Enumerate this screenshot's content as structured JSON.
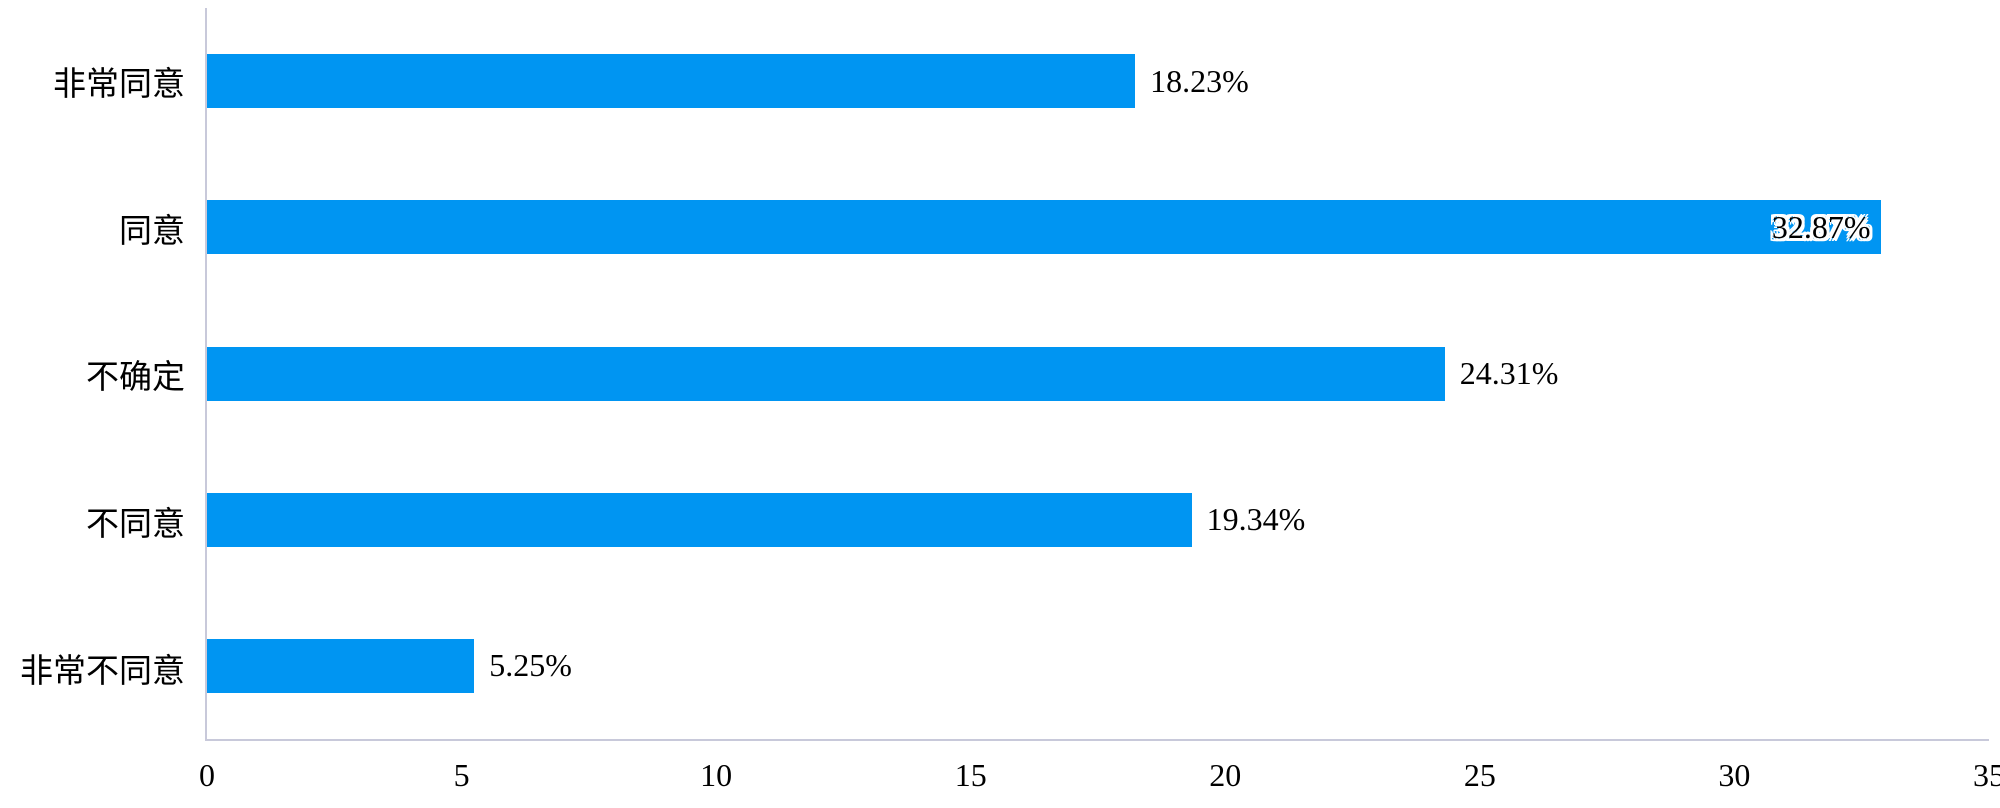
{
  "chart_data": {
    "type": "bar",
    "orientation": "horizontal",
    "title": "",
    "xlabel": "",
    "ylabel": "",
    "categories": [
      "非常同意",
      "同意",
      "不确定",
      "不同意",
      "非常不同意"
    ],
    "values": [
      18.23,
      32.87,
      24.31,
      19.34,
      5.25
    ],
    "value_labels": [
      "18.23%",
      "32.87%",
      "24.31%",
      "19.34%",
      "5.25%"
    ],
    "value_label_inside": [
      false,
      true,
      false,
      false,
      false
    ],
    "xlim": [
      0,
      35
    ],
    "x_ticks": [
      "0",
      "5",
      "10",
      "15",
      "20",
      "25",
      "30",
      "35"
    ],
    "grid": false,
    "legend": null,
    "bar_color": "#0095f2",
    "axis_color": "#c8c9da",
    "label_color": "#000000",
    "background_color": "#ffffff"
  }
}
